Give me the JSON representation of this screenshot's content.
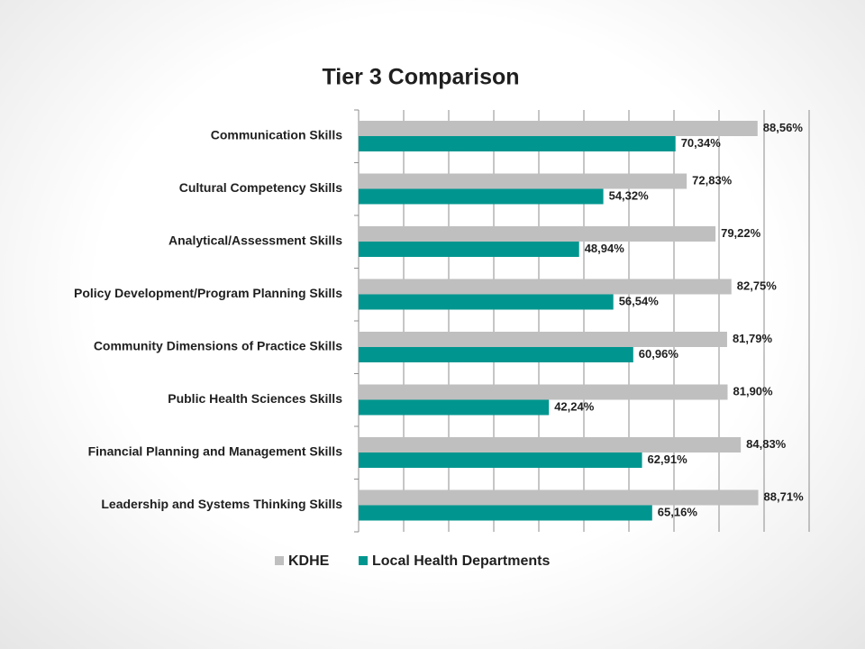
{
  "chart_data": {
    "type": "hbar",
    "title": "Tier 3 Comparison",
    "categories": [
      "Communication Skills",
      "Cultural Competency Skills",
      "Analytical/Assessment Skills",
      "Policy Development/Program Planning Skills",
      "Community Dimensions of Practice Skills",
      "Public Health Sciences Skills",
      "Financial Planning and Management Skills",
      "Leadership and Systems Thinking Skills"
    ],
    "series": [
      {
        "name": "KDHE",
        "color": "#bfbfbf",
        "values": [
          88.56,
          72.83,
          79.22,
          82.75,
          81.79,
          81.9,
          84.83,
          88.71
        ],
        "value_labels": [
          "88,56%",
          "72,83%",
          "79,22%",
          "82,75%",
          "81,79%",
          "81,90%",
          "84,83%",
          "88,71%"
        ]
      },
      {
        "name": "Local Health Departments",
        "color": "#00968f",
        "values": [
          70.34,
          54.32,
          48.94,
          56.54,
          60.96,
          42.24,
          62.91,
          65.16
        ],
        "value_labels": [
          "70,34%",
          "54,32%",
          "48,94%",
          "56,54%",
          "60,96%",
          "42,24%",
          "62,91%",
          "65,16%"
        ]
      }
    ],
    "xlim": [
      0,
      100
    ],
    "xticks": [
      0,
      10,
      20,
      30,
      40,
      50,
      60,
      70,
      80,
      90,
      100
    ],
    "grid": true,
    "legend": "bottom"
  }
}
